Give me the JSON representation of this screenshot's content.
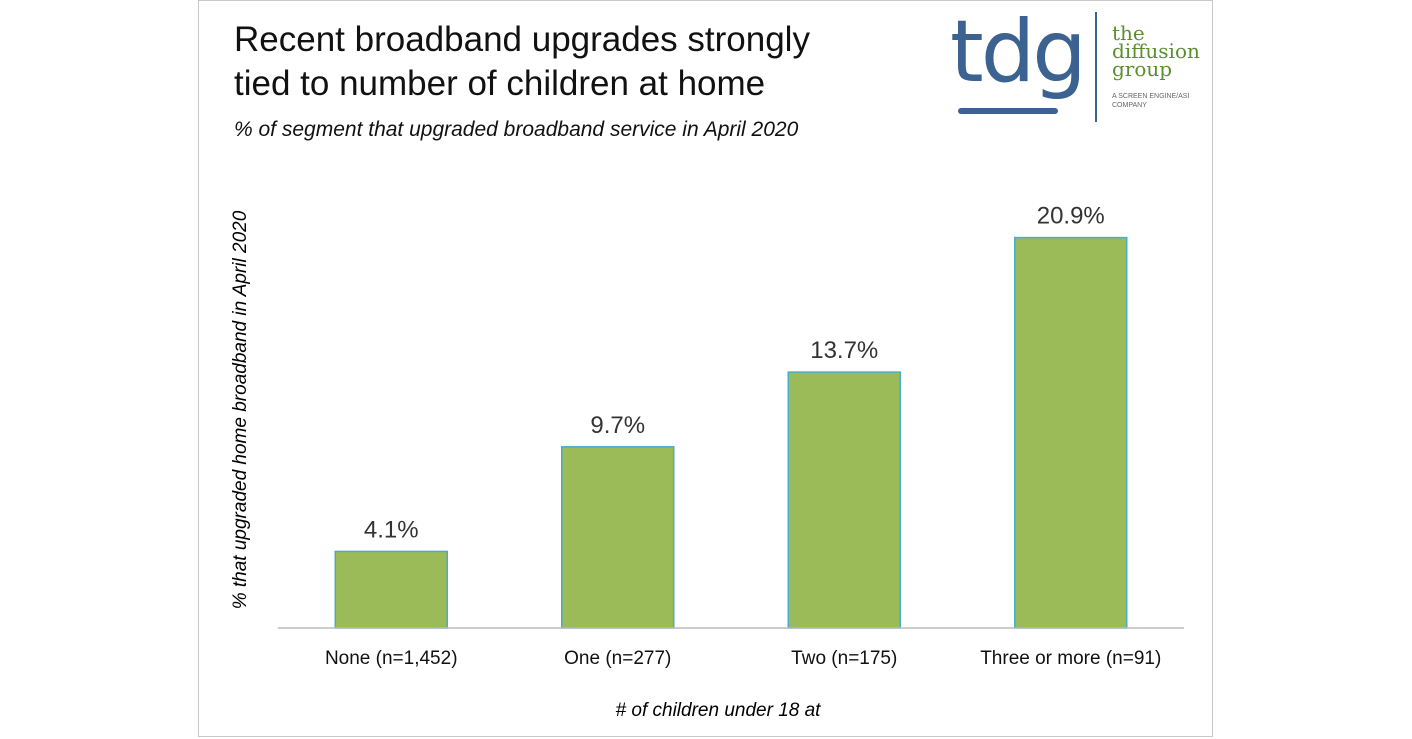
{
  "title_line1": "Recent broadband upgrades strongly",
  "title_line2": "tied to number of children at home",
  "subtitle": "% of segment that upgraded broadband service in April 2020",
  "logo": {
    "mark": "tdg",
    "name_lines": [
      "the",
      "diffusion",
      "group"
    ],
    "tagline": "A SCREEN ENGINE/ASI COMPANY",
    "colors": {
      "mark": "#3b6290",
      "name": "#5b8f2e"
    }
  },
  "chart_data": {
    "type": "bar",
    "title": "Recent broadband upgrades strongly tied to number of children at home",
    "subtitle": "% of segment that upgraded broadband service in April 2020",
    "categories": [
      "None (n=1,452)",
      "One (n=277)",
      "Two (n=175)",
      "Three or more (n=91)"
    ],
    "values": [
      4.1,
      9.7,
      13.7,
      20.9
    ],
    "data_labels": [
      "4.1%",
      "9.7%",
      "13.7%",
      "20.9%"
    ],
    "xlabel": "# of children under 18 at",
    "ylabel": "% that upgraded home broadband in April 2020",
    "ylim": [
      0,
      25
    ],
    "grid": false,
    "bar_color": "#9bbb59",
    "bar_edge_color": "#4bacc6"
  }
}
